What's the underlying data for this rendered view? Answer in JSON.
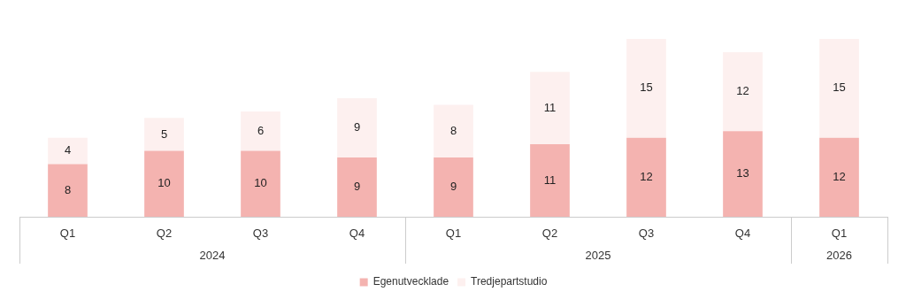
{
  "chart_data": {
    "type": "bar",
    "stacked": true,
    "data_labels": true,
    "legend": "bottom",
    "grid": false,
    "categories": [
      "Q1",
      "Q2",
      "Q3",
      "Q4",
      "Q1",
      "Q2",
      "Q3",
      "Q4",
      "Q1"
    ],
    "series": [
      {
        "name": "Egenutvecklade",
        "color": "#f4b3b0",
        "values": [
          8,
          10,
          10,
          9,
          9,
          11,
          12,
          13,
          12
        ]
      },
      {
        "name": "Tredjepartstudio",
        "color": "#fdf0ef",
        "values": [
          4,
          5,
          6,
          9,
          8,
          11,
          15,
          12,
          15
        ]
      }
    ],
    "annotations": [
      "2024",
      "2025",
      "2026"
    ]
  }
}
